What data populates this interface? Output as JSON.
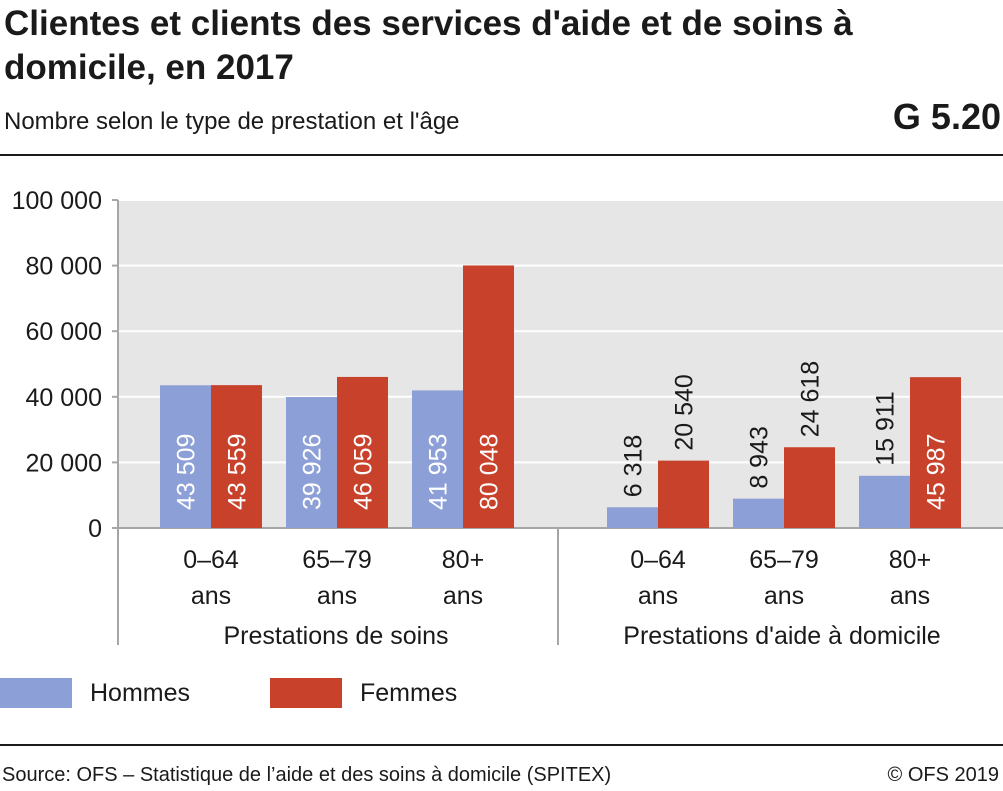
{
  "header": {
    "title": "Clientes et clients des services d'aide et de soins à domicile, en 2017",
    "subtitle": "Nombre selon le type de prestation et l'âge",
    "figure_code": "G 5.20"
  },
  "colors": {
    "hommes": "#8c9fd6",
    "femmes": "#c8412b",
    "plot_bg": "#e6e6e6",
    "grid": "#ffffff",
    "axis": "#a6a6a6"
  },
  "legend": [
    {
      "label": "Hommes",
      "color": "#8c9fd6"
    },
    {
      "label": "Femmes",
      "color": "#c8412b"
    }
  ],
  "footer": {
    "source": "Source: OFS – Statistique de l’aide et des soins à domicile (SPITEX)",
    "copyright": "© OFS 2019"
  },
  "chart_data": {
    "type": "bar",
    "ylim": [
      0,
      100000
    ],
    "yticks": [
      0,
      20000,
      40000,
      60000,
      80000,
      100000
    ],
    "ytick_labels": [
      "0",
      "20 000",
      "40 000",
      "60 000",
      "80 000",
      "100 000"
    ],
    "grid": true,
    "groups": [
      {
        "name": "Prestations de soins",
        "categories": [
          [
            "0–64",
            "ans"
          ],
          [
            "65–79",
            "ans"
          ],
          [
            "80+",
            "ans"
          ]
        ],
        "series": [
          {
            "name": "Hommes",
            "values": [
              43509,
              39926,
              41953
            ],
            "labels": [
              "43 509",
              "39 926",
              "41 953"
            ]
          },
          {
            "name": "Femmes",
            "values": [
              43559,
              46059,
              80048
            ],
            "labels": [
              "43 559",
              "46 059",
              "80 048"
            ]
          }
        ]
      },
      {
        "name": "Prestations d'aide à domicile",
        "categories": [
          [
            "0–64",
            "ans"
          ],
          [
            "65–79",
            "ans"
          ],
          [
            "80+",
            "ans"
          ]
        ],
        "series": [
          {
            "name": "Hommes",
            "values": [
              6318,
              8943,
              15911
            ],
            "labels": [
              "6 318",
              "8 943",
              "15 911"
            ]
          },
          {
            "name": "Femmes",
            "values": [
              20540,
              24618,
              45987
            ],
            "labels": [
              "20 540",
              "24 618",
              "45 987"
            ]
          }
        ]
      }
    ]
  }
}
